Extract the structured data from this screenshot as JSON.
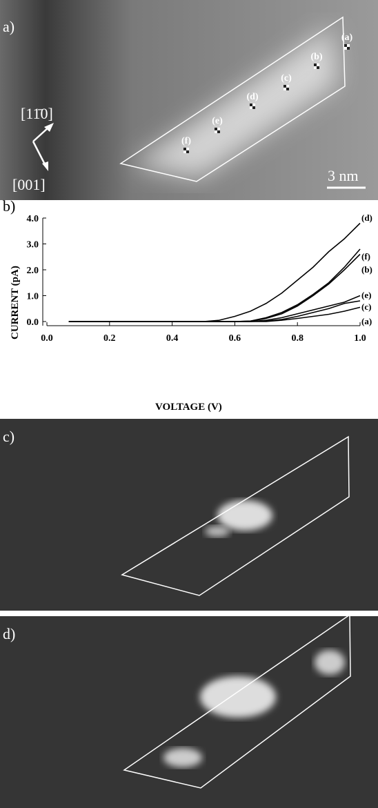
{
  "panel_a": {
    "label": "a)",
    "points": [
      "(a)",
      "(b)",
      "(c)",
      "(d)",
      "(e)",
      "(f)"
    ],
    "direction_1": "[11̄0]",
    "direction_2": "[001]",
    "scale_bar": "3 nm"
  },
  "chart_data": {
    "type": "line",
    "panel_label": "b)",
    "x_label": "VOLTAGE (V)",
    "y_label": "CURRENT (pA)",
    "xlim": [
      0,
      1
    ],
    "ylim": [
      0,
      4
    ],
    "xticks": [
      {
        "value": 0,
        "label": "0.0"
      },
      0.2,
      0.4,
      0.6,
      0.8,
      {
        "value": 1,
        "label": "1.0"
      }
    ],
    "yticks": [
      {
        "value": 0,
        "label": "0.0"
      },
      {
        "value": 1,
        "label": "1.0"
      },
      {
        "value": 2,
        "label": "2.0"
      },
      {
        "value": 3,
        "label": "3.0"
      },
      {
        "value": 4,
        "label": "4.0"
      }
    ],
    "x": [
      0.07,
      0.1,
      0.2,
      0.3,
      0.4,
      0.5,
      0.55,
      0.6,
      0.65,
      0.7,
      0.75,
      0.8,
      0.85,
      0.9,
      0.95,
      1.0
    ],
    "series": [
      {
        "name": "(d)",
        "color": "#000000",
        "values": [
          0,
          0,
          0,
          0,
          0,
          0,
          0.05,
          0.2,
          0.4,
          0.7,
          1.1,
          1.6,
          2.1,
          2.7,
          3.2,
          3.8
        ]
      },
      {
        "name": "(f)",
        "color": "#000000",
        "values": [
          0,
          0,
          0,
          0,
          0,
          0,
          0,
          0,
          0.02,
          0.15,
          0.35,
          0.65,
          1.05,
          1.5,
          2.1,
          2.8
        ]
      },
      {
        "name": "(b)",
        "color": "#000000",
        "values": [
          0,
          0,
          0,
          0,
          0,
          0,
          0,
          0,
          0.02,
          0.12,
          0.3,
          0.6,
          1.0,
          1.45,
          2.0,
          2.6
        ]
      },
      {
        "name": "(e)",
        "color": "#000000",
        "values": [
          0,
          0,
          0,
          0,
          0,
          0,
          0,
          0,
          0,
          0.05,
          0.15,
          0.3,
          0.45,
          0.6,
          0.75,
          1.0
        ]
      },
      {
        "name": "(c)",
        "color": "#000000",
        "values": [
          0,
          0,
          0,
          0,
          0,
          0,
          0,
          0,
          0,
          0.02,
          0.08,
          0.2,
          0.35,
          0.5,
          0.7,
          0.8
        ]
      },
      {
        "name": "(a)",
        "color": "#000000",
        "values": [
          0,
          0,
          0,
          0,
          0,
          0,
          0,
          0,
          0,
          0,
          0.05,
          0.12,
          0.2,
          0.28,
          0.4,
          0.55
        ]
      }
    ]
  },
  "panel_c": {
    "label": "c)"
  },
  "panel_d": {
    "label": "d)"
  }
}
